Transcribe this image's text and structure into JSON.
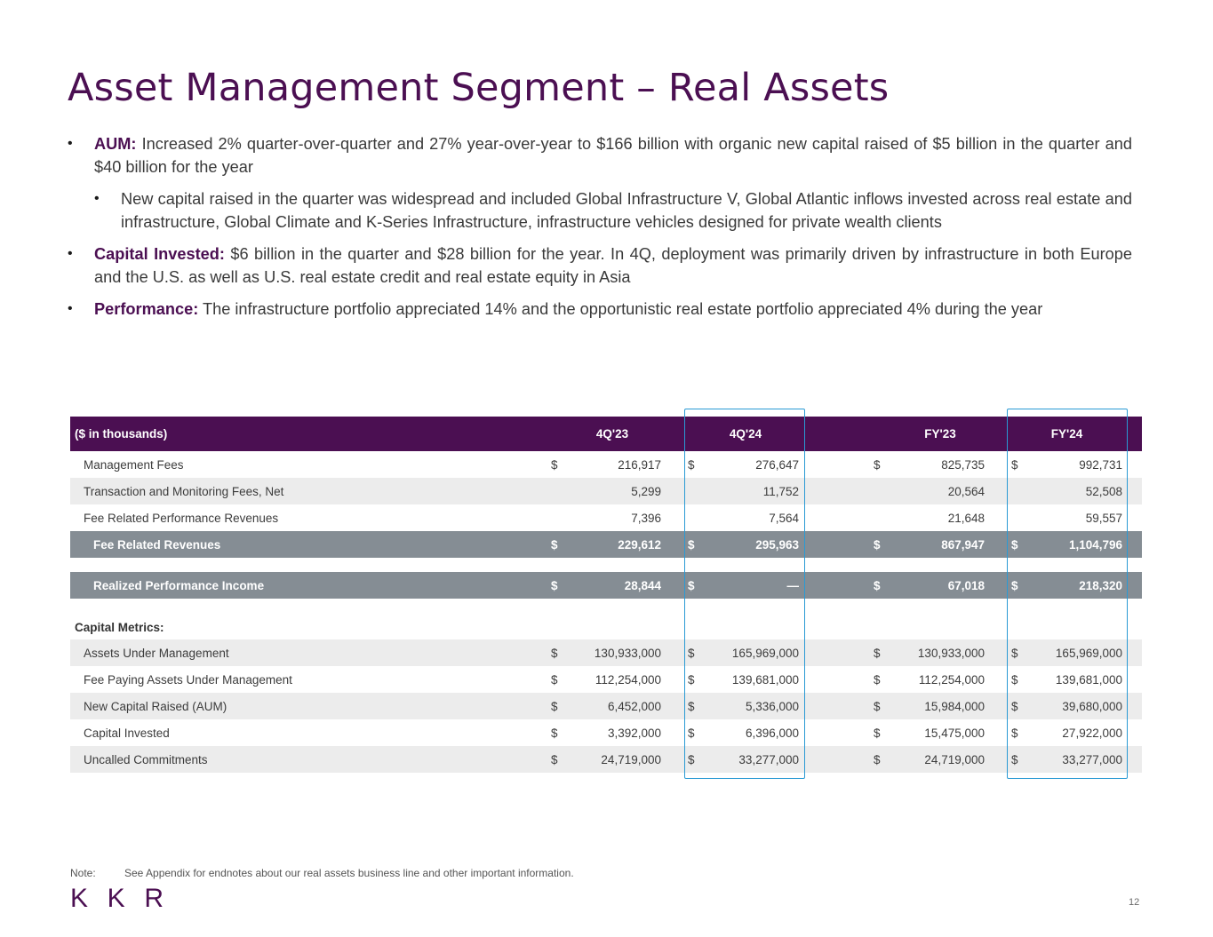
{
  "title": "Asset Management Segment – Real Assets",
  "bullets": [
    {
      "lead": "AUM:",
      "text": " Increased 2% quarter-over-quarter and 27% year-over-year to $166 billion with organic new capital raised of $5 billion in the quarter and $40 billion for the year"
    },
    {
      "lead": "",
      "text": "New capital raised in the quarter was widespread and included Global Infrastructure V, Global Atlantic inflows invested across real estate and infrastructure, Global Climate and K-Series Infrastructure, infrastructure vehicles designed for private wealth clients"
    },
    {
      "lead": "Capital Invested:",
      "text": " $6 billion in the quarter and $28 billion for the year. In 4Q, deployment was primarily driven by infrastructure in both Europe and the U.S. as well as U.S. real estate credit and real estate equity in Asia"
    },
    {
      "lead": "Performance:",
      "text": " The infrastructure portfolio appreciated 14% and the opportunistic real estate portfolio appreciated 4% during the year"
    }
  ],
  "bullet_glyph": "•",
  "table": {
    "headers": [
      "($ in thousands)",
      "4Q'23",
      "4Q'24",
      "FY'23",
      "FY'24"
    ],
    "rows": [
      {
        "label": "Management Fees",
        "sym": [
          "$",
          "$",
          "$",
          "$"
        ],
        "values": [
          "216,917",
          "276,647",
          "825,735",
          "992,731"
        ]
      },
      {
        "label": "Transaction and Monitoring Fees, Net",
        "sym": [
          "",
          "",
          "",
          ""
        ],
        "values": [
          "5,299",
          "11,752",
          "20,564",
          "52,508"
        ]
      },
      {
        "label": "Fee Related Performance Revenues",
        "sym": [
          "",
          "",
          "",
          ""
        ],
        "values": [
          "7,396",
          "7,564",
          "21,648",
          "59,557"
        ]
      },
      {
        "label": "Fee Related Revenues",
        "sym": [
          "$",
          "$",
          "$",
          "$"
        ],
        "values": [
          "229,612",
          "295,963",
          "867,947",
          "1,104,796"
        ]
      },
      {
        "label": "Realized Performance Income",
        "sym": [
          "$",
          "$",
          "$",
          "$"
        ],
        "values": [
          "28,844",
          "—",
          "67,018",
          "218,320"
        ]
      }
    ],
    "section_label": "Capital Metrics:",
    "capital_rows": [
      {
        "label": "Assets Under Management",
        "sym": [
          "$",
          "$",
          "$",
          "$"
        ],
        "values": [
          "130,933,000",
          "165,969,000",
          "130,933,000",
          "165,969,000"
        ]
      },
      {
        "label": "Fee Paying Assets Under Management",
        "sym": [
          "$",
          "$",
          "$",
          "$"
        ],
        "values": [
          "112,254,000",
          "139,681,000",
          "112,254,000",
          "139,681,000"
        ]
      },
      {
        "label": "New Capital Raised (AUM)",
        "sym": [
          "$",
          "$",
          "$",
          "$"
        ],
        "values": [
          "6,452,000",
          "5,336,000",
          "15,984,000",
          "39,680,000"
        ]
      },
      {
        "label": "Capital Invested",
        "sym": [
          "$",
          "$",
          "$",
          "$"
        ],
        "values": [
          "3,392,000",
          "6,396,000",
          "15,475,000",
          "27,922,000"
        ]
      },
      {
        "label": "Uncalled Commitments",
        "sym": [
          "$",
          "$",
          "$",
          "$"
        ],
        "values": [
          "24,719,000",
          "33,277,000",
          "24,719,000",
          "33,277,000"
        ]
      }
    ]
  },
  "note": {
    "label": "Note:",
    "text": "See Appendix for endnotes about our real assets business line and other important information."
  },
  "logo": "KKR",
  "page_number": "12",
  "colors": {
    "brand": "#4b0f52",
    "total_row": "#858d94",
    "highlight": "#2a9ad4",
    "shade": "#ececec"
  }
}
